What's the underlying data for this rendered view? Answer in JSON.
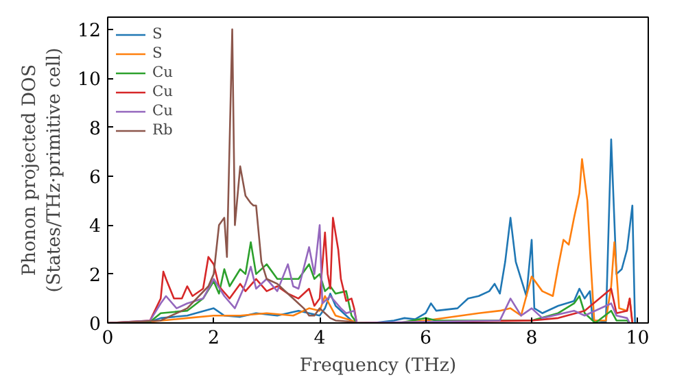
{
  "chart_data": {
    "type": "line",
    "xlabel": "Frequency (THz)",
    "ylabel": "Phonon projected DOS\n(States/THz·primitive cell)",
    "xlim": [
      0,
      10.2
    ],
    "ylim": [
      0,
      12.5
    ],
    "xticks": [
      0,
      2,
      4,
      6,
      8,
      10
    ],
    "yticks": [
      0,
      2,
      4,
      6,
      8,
      10,
      12
    ],
    "grid": false,
    "legend": "top left",
    "series": [
      {
        "name": "S",
        "color": "#1f77b4",
        "x": [
          0,
          0.8,
          1.0,
          1.5,
          2.0,
          2.2,
          2.5,
          2.8,
          3.2,
          3.6,
          4.0,
          4.1,
          4.2,
          4.3,
          4.5,
          4.6,
          4.7,
          5.0,
          5.4,
          5.6,
          5.8,
          6.0,
          6.1,
          6.2,
          6.6,
          6.8,
          7.0,
          7.2,
          7.3,
          7.4,
          7.5,
          7.6,
          7.7,
          7.8,
          7.9,
          8.0,
          8.05,
          8.2,
          8.5,
          8.8,
          8.9,
          9.0,
          9.1,
          9.15,
          9.4,
          9.5,
          9.6,
          9.7,
          9.8,
          9.9,
          9.95
        ],
        "values": [
          0,
          0.05,
          0.2,
          0.3,
          0.6,
          0.3,
          0.25,
          0.4,
          0.3,
          0.5,
          0.3,
          0.6,
          1.2,
          0.7,
          0.3,
          0.1,
          0,
          0,
          0.1,
          0.2,
          0.15,
          0.4,
          0.8,
          0.5,
          0.6,
          1.0,
          1.1,
          1.3,
          1.6,
          1.2,
          2.5,
          4.3,
          2.5,
          1.8,
          1.1,
          3.4,
          0.6,
          0.4,
          0.7,
          0.9,
          1.4,
          1.0,
          1.3,
          0.1,
          0.05,
          7.5,
          2.0,
          2.2,
          3.0,
          4.8,
          0
        ]
      },
      {
        "name": "S",
        "color": "#ff7f0e",
        "x": [
          0,
          0.8,
          1.5,
          2.0,
          2.5,
          3.0,
          3.5,
          3.8,
          4.0,
          4.1,
          4.2,
          4.3,
          4.6,
          4.7,
          5.5,
          6.0,
          7.0,
          7.4,
          7.6,
          7.8,
          8.0,
          8.2,
          8.4,
          8.5,
          8.6,
          8.7,
          8.8,
          8.9,
          8.95,
          9.05,
          9.1,
          9.18,
          9.4,
          9.5,
          9.56,
          9.65,
          9.8,
          9.85,
          9.9
        ],
        "values": [
          0,
          0.05,
          0.2,
          0.3,
          0.3,
          0.4,
          0.3,
          0.6,
          0.5,
          1.1,
          0.7,
          0.3,
          0.1,
          0,
          0,
          0.1,
          0.4,
          0.5,
          0.6,
          0.3,
          1.9,
          1.3,
          1.1,
          2.3,
          3.4,
          3.2,
          4.3,
          5.3,
          6.7,
          5.0,
          3.0,
          0.1,
          0.1,
          1.5,
          3.3,
          0.6,
          0.5,
          1.0,
          0
        ]
      },
      {
        "name": "Cu",
        "color": "#2ca02c",
        "x": [
          0,
          0.8,
          1.0,
          1.5,
          1.8,
          2.0,
          2.1,
          2.2,
          2.3,
          2.5,
          2.6,
          2.7,
          2.8,
          3.0,
          3.2,
          3.4,
          3.6,
          3.8,
          3.9,
          4.0,
          4.1,
          4.2,
          4.3,
          4.5,
          4.6,
          4.7,
          5.5,
          6.0,
          6.2,
          7.0,
          8.0,
          8.5,
          8.8,
          8.9,
          9.0,
          9.2,
          9.5,
          9.6,
          9.8,
          9.85
        ],
        "values": [
          0,
          0.05,
          0.4,
          0.5,
          1.0,
          1.7,
          1.2,
          2.2,
          1.5,
          2.2,
          2.0,
          3.3,
          2.0,
          2.4,
          1.8,
          1.8,
          1.8,
          2.4,
          1.8,
          2.0,
          1.3,
          1.5,
          1.2,
          1.3,
          0.3,
          0,
          0,
          0.2,
          0.1,
          0.1,
          0.1,
          0.4,
          0.8,
          1.1,
          0.4,
          0,
          0.5,
          0.1,
          0.1,
          0
        ]
      },
      {
        "name": "Cu",
        "color": "#d62728",
        "x": [
          0,
          0.8,
          1.0,
          1.05,
          1.1,
          1.25,
          1.4,
          1.5,
          1.6,
          1.8,
          1.9,
          2.0,
          2.1,
          2.3,
          2.5,
          2.6,
          2.8,
          3.0,
          3.2,
          3.4,
          3.6,
          3.8,
          3.9,
          4.0,
          4.1,
          4.15,
          4.2,
          4.25,
          4.35,
          4.4,
          4.5,
          4.6,
          4.65,
          4.7,
          8.0,
          8.5,
          9.0,
          9.5,
          9.6,
          9.8,
          9.85,
          9.9
        ],
        "values": [
          0,
          0.1,
          1.0,
          2.1,
          1.8,
          1.0,
          1.0,
          1.5,
          1.1,
          1.4,
          2.7,
          2.4,
          1.5,
          1.0,
          1.6,
          1.3,
          1.8,
          1.3,
          1.5,
          1.2,
          1.0,
          1.4,
          0.7,
          1.0,
          3.7,
          2.0,
          1.4,
          4.3,
          3.0,
          1.8,
          0.9,
          1.0,
          0.6,
          0,
          0.1,
          0.2,
          0.5,
          1.4,
          0.4,
          0.5,
          1.0,
          0
        ]
      },
      {
        "name": "Cu",
        "color": "#9467bd",
        "x": [
          0,
          0.8,
          1.0,
          1.1,
          1.3,
          1.5,
          1.8,
          2.0,
          2.2,
          2.4,
          2.6,
          2.7,
          2.8,
          3.0,
          3.2,
          3.4,
          3.5,
          3.6,
          3.8,
          3.9,
          4.0,
          4.05,
          4.2,
          4.4,
          4.5,
          4.65,
          4.7,
          7.4,
          7.6,
          7.8,
          8.0,
          8.2,
          8.8,
          9.0,
          9.5,
          9.6,
          9.8,
          9.85
        ],
        "values": [
          0,
          0.1,
          0.8,
          1.1,
          0.6,
          0.8,
          1.0,
          1.8,
          1.1,
          0.6,
          1.6,
          2.3,
          1.4,
          1.8,
          1.3,
          2.4,
          1.5,
          1.4,
          3.1,
          2.0,
          4.0,
          0.8,
          1.1,
          0.6,
          0.4,
          0.5,
          0,
          0.1,
          1.0,
          0.3,
          0.6,
          0.2,
          0.5,
          0.3,
          0.8,
          0.3,
          0.2,
          0
        ]
      },
      {
        "name": "Rb",
        "color": "#8c564b",
        "x": [
          0,
          0.5,
          1.0,
          1.5,
          1.9,
          2.0,
          2.1,
          2.2,
          2.25,
          2.35,
          2.4,
          2.5,
          2.6,
          2.7,
          2.75,
          2.8,
          2.9,
          3.0,
          3.2,
          3.4,
          3.6,
          3.7,
          3.8,
          3.9,
          4.0,
          4.1,
          4.2,
          4.3,
          4.6,
          4.7
        ],
        "values": [
          0,
          0.05,
          0.1,
          0.6,
          1.5,
          2.0,
          4.0,
          4.3,
          2.7,
          12.0,
          4.0,
          6.4,
          5.2,
          4.9,
          4.8,
          4.8,
          2.5,
          1.8,
          1.6,
          1.2,
          0.8,
          0.6,
          0.3,
          0.3,
          0.6,
          0.4,
          0.2,
          0.1,
          0.05,
          0
        ]
      }
    ]
  }
}
